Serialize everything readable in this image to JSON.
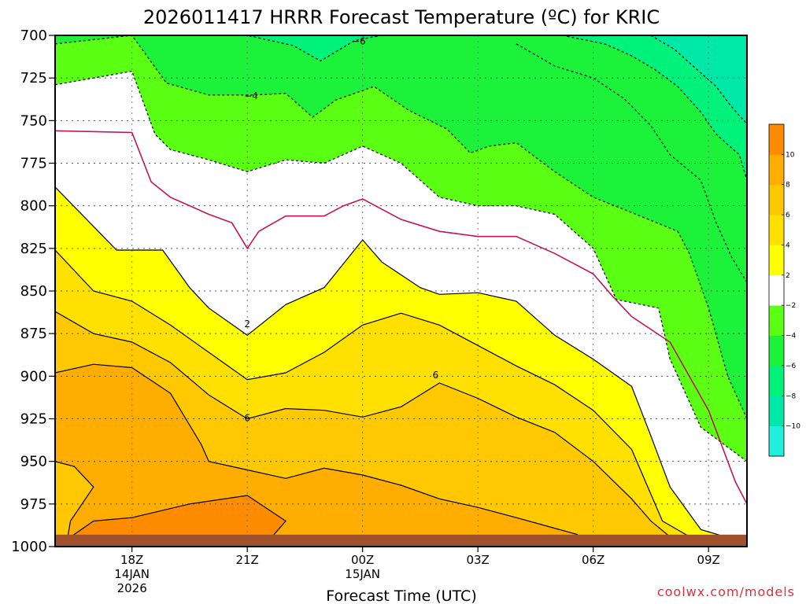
{
  "chart_data": {
    "type": "contour",
    "title": "2026011417 HRRR Forecast Temperature (ºC) for KRIC",
    "xlabel": "Forecast Time (UTC)",
    "ylabel": "",
    "credit": "coolwx.com/models",
    "y_axis": {
      "unit": "hPa",
      "range": [
        1000,
        700
      ],
      "ticks": [
        "700",
        "725",
        "750",
        "775",
        "800",
        "825",
        "850",
        "875",
        "900",
        "925",
        "950",
        "975",
        "1000"
      ]
    },
    "x_axis": {
      "range_hours": [
        -1,
        17
      ],
      "ticks": [
        {
          "hour": 1,
          "l1": "18Z",
          "l2": "14JAN",
          "l3": "2026"
        },
        {
          "hour": 4,
          "l1": "21Z",
          "l2": "",
          "l3": ""
        },
        {
          "hour": 7,
          "l1": "00Z",
          "l2": "15JAN",
          "l3": ""
        },
        {
          "hour": 10,
          "l1": "03Z",
          "l2": "",
          "l3": ""
        },
        {
          "hour": 13,
          "l1": "06Z",
          "l2": "",
          "l3": ""
        },
        {
          "hour": 16,
          "l1": "09Z",
          "l2": "",
          "l3": ""
        }
      ]
    },
    "colorbar": {
      "bounds": [
        -12,
        -10,
        -8,
        -6,
        -4,
        -2,
        2,
        4,
        6,
        8,
        10,
        12
      ],
      "colors": [
        "#22eedd",
        "#00e8a8",
        "#00f27a",
        "#1df23b",
        "#5aff14",
        "#ffffff",
        "#ffff00",
        "#ffe000",
        "#ffc800",
        "#ffad00",
        "#ff8c00"
      ],
      "tick_labels": [
        "10",
        "8",
        "6",
        "4",
        "2",
        "−2",
        "−4",
        "−6",
        "−8",
        "−10"
      ],
      "tick_values": [
        10,
        8,
        6,
        4,
        2,
        -2,
        -4,
        -6,
        -8,
        -10
      ]
    },
    "contours": [
      {
        "level": -6,
        "style": "dashed",
        "color": "#000000",
        "points": [
          [
            1.1,
            700
          ],
          [
            4.0,
            700
          ],
          [
            5.2,
            706
          ],
          [
            5.9,
            715
          ],
          [
            6.8,
            703
          ],
          [
            7.5,
            700
          ]
        ]
      },
      {
        "level": -4,
        "style": "dashed",
        "color": "#000000",
        "points": [
          [
            -1.0,
            705
          ],
          [
            1.0,
            700
          ],
          [
            1.9,
            728
          ],
          [
            3.0,
            735
          ],
          [
            4.2,
            735
          ],
          [
            5.0,
            734
          ],
          [
            5.7,
            748
          ],
          [
            6.3,
            738
          ],
          [
            7.3,
            730
          ],
          [
            8.2,
            744
          ],
          [
            9.2,
            755
          ],
          [
            9.8,
            769
          ],
          [
            10.3,
            765
          ],
          [
            11.0,
            763
          ],
          [
            12.0,
            780
          ],
          [
            13.0,
            795
          ],
          [
            14.0,
            804
          ],
          [
            15.2,
            815
          ],
          [
            15.5,
            828
          ],
          [
            16.0,
            860
          ],
          [
            16.5,
            900
          ],
          [
            17.0,
            925
          ]
        ]
      },
      {
        "level": -2,
        "style": "dashed",
        "color": "#000000",
        "points": [
          [
            -1.0,
            729
          ],
          [
            1.0,
            721
          ],
          [
            1.6,
            758
          ],
          [
            2.0,
            767
          ],
          [
            3.0,
            773
          ],
          [
            4.0,
            780
          ],
          [
            5.0,
            773
          ],
          [
            6.0,
            775
          ],
          [
            7.0,
            765
          ],
          [
            8.0,
            775
          ],
          [
            9.0,
            795
          ],
          [
            10.0,
            800
          ],
          [
            11.0,
            800
          ],
          [
            12.0,
            805
          ],
          [
            13.0,
            825
          ],
          [
            13.6,
            855
          ],
          [
            14.7,
            860
          ],
          [
            15.0,
            890
          ],
          [
            15.8,
            930
          ],
          [
            17.0,
            950
          ]
        ]
      },
      {
        "level": -2,
        "style": "dashed",
        "color": "#000000",
        "points": [
          [
            11.0,
            705
          ],
          [
            12.0,
            718
          ],
          [
            13.0,
            725
          ],
          [
            13.8,
            737
          ],
          [
            14.5,
            753
          ],
          [
            15.0,
            770
          ],
          [
            15.8,
            785
          ],
          [
            16.2,
            810
          ],
          [
            16.6,
            830
          ],
          [
            17.0,
            845
          ]
        ]
      },
      {
        "level": -4,
        "style": "dashed",
        "color": "#000000",
        "points": [
          [
            12.2,
            700
          ],
          [
            13.3,
            705
          ],
          [
            14.0,
            712
          ],
          [
            14.6,
            720
          ],
          [
            15.2,
            730
          ],
          [
            15.8,
            745
          ],
          [
            16.2,
            758
          ],
          [
            16.8,
            770
          ],
          [
            17.0,
            785
          ]
        ]
      },
      {
        "level": -6,
        "style": "dashed",
        "color": "#000000",
        "points": [
          [
            14.5,
            700
          ],
          [
            15.1,
            708
          ],
          [
            15.6,
            718
          ],
          [
            16.2,
            730
          ],
          [
            16.6,
            742
          ],
          [
            17.0,
            752
          ]
        ]
      },
      {
        "level": 0,
        "style": "solid",
        "color": "#c0145a",
        "points": [
          [
            -1.0,
            756
          ],
          [
            1.0,
            757
          ],
          [
            1.5,
            786
          ],
          [
            2.0,
            795
          ],
          [
            3.0,
            805
          ],
          [
            3.6,
            810
          ],
          [
            4.0,
            825
          ],
          [
            4.3,
            815
          ],
          [
            5.0,
            806
          ],
          [
            6.0,
            806
          ],
          [
            6.5,
            800
          ],
          [
            7.0,
            796
          ],
          [
            8.0,
            808
          ],
          [
            9.0,
            815
          ],
          [
            10.0,
            818
          ],
          [
            11.0,
            818
          ],
          [
            12.0,
            828
          ],
          [
            13.0,
            840
          ],
          [
            13.5,
            853
          ],
          [
            14.0,
            865
          ],
          [
            15.0,
            880
          ],
          [
            16.0,
            920
          ],
          [
            16.7,
            962
          ],
          [
            17.0,
            975
          ]
        ]
      },
      {
        "level": 2,
        "style": "solid",
        "color": "#000000",
        "points": [
          [
            -1.0,
            789
          ],
          [
            0.6,
            826
          ],
          [
            1.8,
            826
          ],
          [
            2.5,
            848
          ],
          [
            3.0,
            860
          ],
          [
            4.0,
            876
          ],
          [
            5.0,
            858
          ],
          [
            6.0,
            848
          ],
          [
            7.0,
            820
          ],
          [
            7.5,
            833
          ],
          [
            8.5,
            848
          ],
          [
            9.0,
            852
          ],
          [
            10.0,
            851
          ],
          [
            11.0,
            856
          ],
          [
            12.0,
            876
          ],
          [
            13.0,
            890
          ],
          [
            14.0,
            906
          ],
          [
            14.5,
            935
          ],
          [
            15.0,
            965
          ],
          [
            15.8,
            990
          ],
          [
            17.0,
            998
          ]
        ]
      },
      {
        "level": 4,
        "style": "solid",
        "color": "#000000",
        "points": [
          [
            -1.0,
            826
          ],
          [
            0.0,
            850
          ],
          [
            1.0,
            856
          ],
          [
            2.0,
            870
          ],
          [
            3.0,
            886
          ],
          [
            4.0,
            902
          ],
          [
            5.0,
            898
          ],
          [
            6.0,
            886
          ],
          [
            7.0,
            870
          ],
          [
            8.0,
            863
          ],
          [
            9.0,
            870
          ],
          [
            10.0,
            882
          ],
          [
            11.0,
            894
          ],
          [
            12.0,
            905
          ],
          [
            13.0,
            920
          ],
          [
            14.0,
            943
          ],
          [
            14.8,
            985
          ],
          [
            15.8,
            998
          ]
        ]
      },
      {
        "level": 6,
        "style": "solid",
        "color": "#000000",
        "points": [
          [
            -1.0,
            862
          ],
          [
            0.0,
            875
          ],
          [
            1.0,
            880
          ],
          [
            2.0,
            892
          ],
          [
            3.0,
            911
          ],
          [
            4.0,
            925
          ],
          [
            5.0,
            919
          ],
          [
            6.0,
            920
          ],
          [
            7.0,
            924
          ],
          [
            8.0,
            918
          ],
          [
            9.0,
            904
          ],
          [
            10.0,
            913
          ],
          [
            11.0,
            924
          ],
          [
            12.0,
            933
          ],
          [
            13.0,
            950
          ],
          [
            14.0,
            972
          ],
          [
            14.5,
            985
          ],
          [
            15.2,
            998
          ]
        ]
      },
      {
        "level": 8,
        "style": "solid",
        "color": "#000000",
        "points": [
          [
            -1.0,
            898
          ],
          [
            0.0,
            893
          ],
          [
            1.0,
            895
          ],
          [
            2.0,
            910
          ],
          [
            2.8,
            940
          ],
          [
            3.0,
            950
          ],
          [
            4.0,
            955
          ],
          [
            5.0,
            960
          ],
          [
            6.0,
            954
          ],
          [
            7.0,
            958
          ],
          [
            8.0,
            964
          ],
          [
            9.0,
            972
          ],
          [
            10.0,
            977
          ],
          [
            11.0,
            983
          ],
          [
            11.8,
            988
          ],
          [
            12.6,
            993
          ]
        ]
      },
      {
        "level": 8,
        "style": "solid",
        "color": "#000000",
        "points": [
          [
            -1.0,
            950
          ],
          [
            -0.5,
            953
          ],
          [
            0.0,
            965
          ],
          [
            -0.6,
            985
          ],
          [
            -0.7,
            998
          ]
        ]
      },
      {
        "level": 10,
        "style": "solid",
        "color": "#000000",
        "points": [
          [
            -0.7,
            996
          ],
          [
            0.0,
            985
          ],
          [
            1.0,
            983
          ],
          [
            2.5,
            975
          ],
          [
            4.0,
            970
          ],
          [
            5.0,
            985
          ],
          [
            4.5,
            998
          ]
        ]
      }
    ],
    "contour_labels": [
      {
        "text": "−6",
        "hour": 6.9,
        "p": 703
      },
      {
        "text": "−4",
        "hour": 4.1,
        "p": 735
      },
      {
        "text": "2",
        "hour": 4.0,
        "p": 869
      },
      {
        "text": "6",
        "hour": 4.0,
        "p": 924
      },
      {
        "text": "6",
        "hour": 8.9,
        "p": 899
      }
    ],
    "terrain": {
      "color": "#a0522d",
      "top_p": 993
    }
  }
}
